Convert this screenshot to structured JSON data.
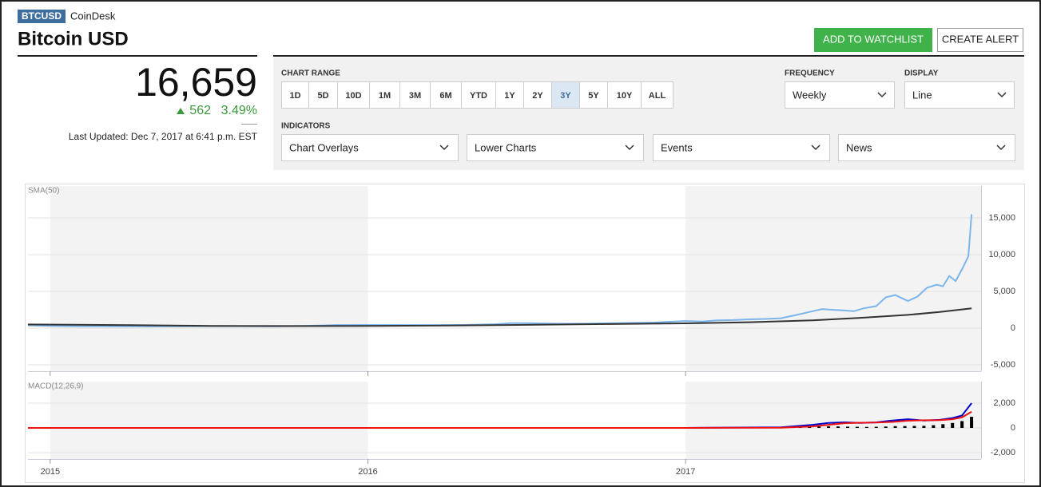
{
  "header": {
    "ticker": "BTCUSD",
    "source": "CoinDesk",
    "title": "Bitcoin USD"
  },
  "buttons": [
    "ADD TO WATCHLIST",
    "CREATE ALERT"
  ],
  "quote": {
    "price": "16,659",
    "change": "562",
    "change_pct": "3.49%",
    "updated": "Last Updated: Dec 7, 2017 at 6:41 p.m. EST"
  },
  "controls": {
    "range_label": "CHART RANGE",
    "ranges": [
      "1D",
      "5D",
      "10D",
      "1M",
      "3M",
      "6M",
      "YTD",
      "1Y",
      "2Y",
      "3Y",
      "5Y",
      "10Y",
      "ALL"
    ],
    "selected_range": 9,
    "frequency_label": "FREQUENCY",
    "frequency": "Weekly",
    "display_label": "DISPLAY",
    "display": "Line",
    "indicators_label": "INDICATORS",
    "indicators": [
      "Chart Overlays",
      "Lower Charts",
      "Events",
      "News"
    ]
  },
  "chart_data": [
    {
      "type": "line",
      "label": "SMA(50)",
      "xlim": [
        2014.93,
        2017.93
      ],
      "xticks": [
        2015,
        2016,
        2017
      ],
      "ylim": [
        -5870,
        19350
      ],
      "yticks": [
        {
          "value": -5000,
          "label": "-5,000"
        },
        0,
        {
          "value": 5000,
          "label": "5,000"
        },
        {
          "value": 10000,
          "label": "10,000"
        },
        {
          "value": 15000,
          "label": "15,000"
        }
      ],
      "grid": true,
      "series": [
        {
          "color": "#7cb5ec",
          "x": [
            2014.93,
            2015.0,
            2015.1,
            2015.2,
            2015.3,
            2015.4,
            2015.5,
            2015.6,
            2015.7,
            2015.8,
            2015.9,
            2016.0,
            2016.1,
            2016.2,
            2016.3,
            2016.4,
            2016.45,
            2016.5,
            2016.6,
            2016.7,
            2016.8,
            2016.9,
            2017.0,
            2017.05,
            2017.1,
            2017.15,
            2017.2,
            2017.25,
            2017.3,
            2017.35,
            2017.4,
            2017.43,
            2017.46,
            2017.5,
            2017.53,
            2017.56,
            2017.6,
            2017.63,
            2017.66,
            2017.7,
            2017.73,
            2017.76,
            2017.79,
            2017.81,
            2017.83,
            2017.85,
            2017.87,
            2017.89,
            2017.9
          ],
          "values": [
            370,
            300,
            240,
            250,
            230,
            240,
            280,
            270,
            240,
            300,
            420,
            430,
            420,
            410,
            440,
            530,
            680,
            680,
            600,
            610,
            700,
            760,
            980,
            900,
            1050,
            1100,
            1200,
            1250,
            1350,
            1800,
            2300,
            2600,
            2500,
            2400,
            2300,
            2700,
            3000,
            4200,
            4500,
            3700,
            4300,
            5500,
            5900,
            5700,
            7100,
            6400,
            8000,
            9800,
            15500
          ]
        },
        {
          "color": "#333333",
          "x": [
            2014.93,
            2015.25,
            2015.5,
            2015.75,
            2016.0,
            2016.25,
            2016.5,
            2016.75,
            2017.0,
            2017.2,
            2017.4,
            2017.55,
            2017.7,
            2017.8,
            2017.9
          ],
          "values": [
            500,
            400,
            300,
            280,
            300,
            350,
            450,
            550,
            650,
            800,
            1050,
            1400,
            1800,
            2200,
            2700
          ]
        }
      ]
    },
    {
      "type": "line",
      "label": "MACD(12,26,9)",
      "xlim": [
        2014.93,
        2017.93
      ],
      "xticks": [
        2015,
        2016,
        2017
      ],
      "ylim": [
        -2516,
        3740
      ],
      "yticks": [
        {
          "value": -2000,
          "label": "-2,000"
        },
        0,
        {
          "value": 2000,
          "label": "2,000"
        }
      ],
      "grid": true,
      "series": [
        {
          "type": "bar",
          "color": "#000000",
          "x": [
            2017.3,
            2017.33,
            2017.36,
            2017.39,
            2017.42,
            2017.45,
            2017.48,
            2017.51,
            2017.54,
            2017.57,
            2017.6,
            2017.63,
            2017.66,
            2017.69,
            2017.72,
            2017.75,
            2017.78,
            2017.81,
            2017.84,
            2017.87,
            2017.9
          ],
          "values": [
            30,
            60,
            80,
            100,
            120,
            130,
            120,
            100,
            90,
            80,
            90,
            110,
            140,
            150,
            160,
            170,
            220,
            300,
            400,
            550,
            900
          ]
        },
        {
          "type": "line",
          "color": "#0000cc",
          "x": [
            2014.93,
            2016.0,
            2017.0,
            2017.3,
            2017.4,
            2017.45,
            2017.5,
            2017.55,
            2017.6,
            2017.65,
            2017.7,
            2017.75,
            2017.8,
            2017.84,
            2017.87,
            2017.9
          ],
          "values": [
            0,
            0,
            0,
            50,
            250,
            400,
            450,
            400,
            450,
            600,
            700,
            600,
            650,
            800,
            1000,
            2000
          ]
        },
        {
          "type": "line",
          "color": "#ee1111",
          "x": [
            2014.93,
            2016.0,
            2017.0,
            2017.3,
            2017.4,
            2017.45,
            2017.5,
            2017.55,
            2017.6,
            2017.65,
            2017.7,
            2017.75,
            2017.8,
            2017.84,
            2017.87,
            2017.9
          ],
          "values": [
            0,
            0,
            0,
            20,
            120,
            250,
            380,
            420,
            430,
            480,
            580,
            620,
            630,
            700,
            850,
            1300
          ]
        }
      ]
    }
  ]
}
